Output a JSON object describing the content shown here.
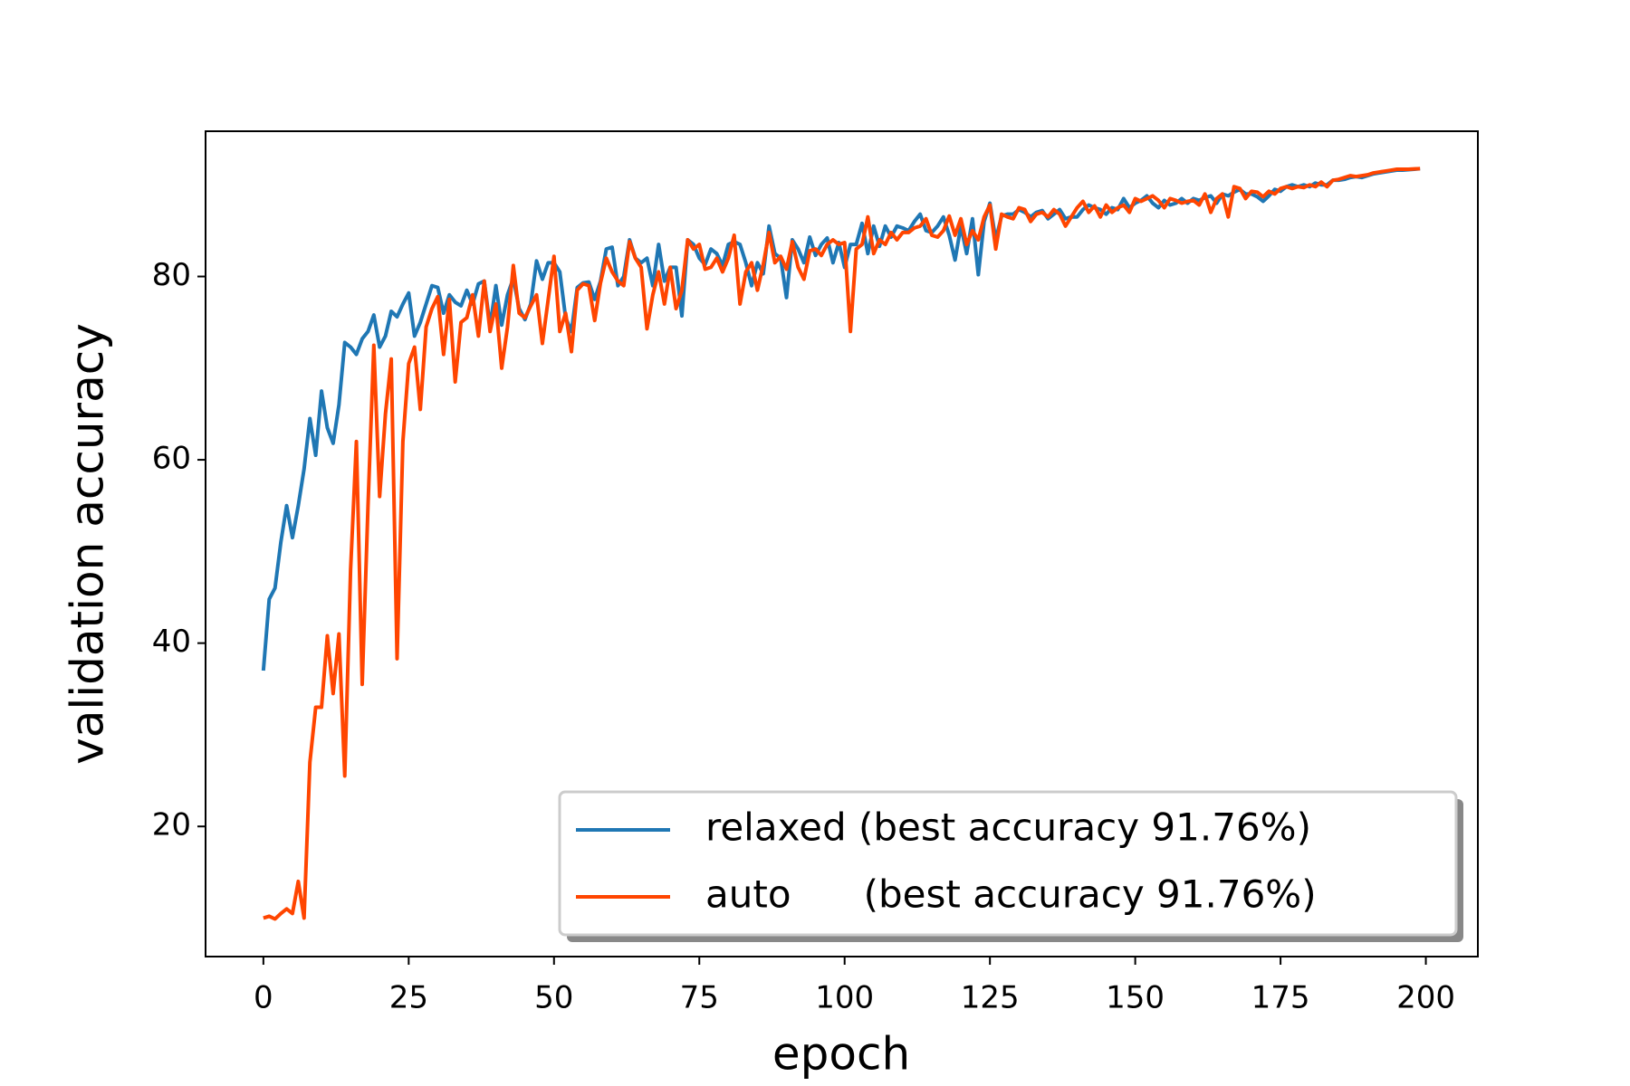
{
  "chart_data": {
    "type": "line",
    "xlabel": "epoch",
    "ylabel": "validation accuracy",
    "xlim": [
      -9.95,
      208.95
    ],
    "ylim": [
      5.8,
      95.85
    ],
    "xticks": [
      0,
      25,
      50,
      75,
      100,
      125,
      150,
      175,
      200
    ],
    "yticks": [
      20,
      40,
      60,
      80
    ],
    "legend": "lower right",
    "x": [
      0,
      1,
      2,
      3,
      4,
      5,
      6,
      7,
      8,
      9,
      10,
      11,
      12,
      13,
      14,
      15,
      16,
      17,
      18,
      19,
      20,
      21,
      22,
      23,
      24,
      25,
      26,
      27,
      28,
      29,
      30,
      31,
      32,
      33,
      34,
      35,
      36,
      37,
      38,
      39,
      40,
      41,
      42,
      43,
      44,
      45,
      46,
      47,
      48,
      49,
      50,
      51,
      52,
      53,
      54,
      55,
      56,
      57,
      58,
      59,
      60,
      61,
      62,
      63,
      64,
      65,
      66,
      67,
      68,
      69,
      70,
      71,
      72,
      73,
      74,
      75,
      76,
      77,
      78,
      79,
      80,
      81,
      82,
      83,
      84,
      85,
      86,
      87,
      88,
      89,
      90,
      91,
      92,
      93,
      94,
      95,
      96,
      97,
      98,
      99,
      100,
      101,
      102,
      103,
      104,
      105,
      106,
      107,
      108,
      109,
      110,
      111,
      112,
      113,
      114,
      115,
      116,
      117,
      118,
      119,
      120,
      121,
      122,
      123,
      124,
      125,
      126,
      127,
      128,
      129,
      130,
      131,
      132,
      133,
      134,
      135,
      136,
      137,
      138,
      139,
      140,
      141,
      142,
      143,
      144,
      145,
      146,
      147,
      148,
      149,
      150,
      151,
      152,
      153,
      154,
      155,
      156,
      157,
      158,
      159,
      160,
      161,
      162,
      163,
      164,
      165,
      166,
      167,
      168,
      169,
      170,
      171,
      172,
      173,
      174,
      175,
      176,
      177,
      178,
      179,
      180,
      181,
      182,
      183,
      184,
      185,
      186,
      187,
      188,
      189,
      190,
      191,
      192,
      193,
      194,
      195,
      196,
      197,
      198,
      199
    ],
    "series": [
      {
        "name": "relaxed (best accuracy 91.76%)",
        "color": "#1f77b4",
        "values": [
          37,
          44.8,
          46,
          51,
          55,
          51.5,
          55,
          59,
          64.5,
          60.5,
          67.5,
          63.5,
          61.8,
          66,
          72.8,
          72.3,
          71.5,
          73.2,
          74,
          75.8,
          72.3,
          73.5,
          76.2,
          75.6,
          77,
          78.2,
          73.5,
          75,
          77,
          79,
          78.8,
          76,
          78,
          77.2,
          76.8,
          78.5,
          77,
          79.2,
          79.5,
          74.6,
          79,
          74.7,
          78,
          79.8,
          76.5,
          75.3,
          77,
          81.7,
          79.7,
          81.5,
          81.5,
          80.5,
          75.5,
          74,
          78.8,
          79.3,
          79.4,
          77.5,
          79.5,
          83,
          83.2,
          79,
          80,
          84,
          82,
          81.5,
          82,
          79,
          83.5,
          79.5,
          81,
          81,
          75.7,
          84,
          83.5,
          82,
          81.3,
          83,
          82.5,
          81.2,
          83.5,
          83.8,
          83.5,
          81.5,
          79,
          81.5,
          80.3,
          85.5,
          82.5,
          82,
          77.7,
          84,
          83,
          81.5,
          84.3,
          82.3,
          83.5,
          84.2,
          81.5,
          83.7,
          81,
          83.5,
          83.5,
          85.8,
          82.5,
          85.5,
          83.3,
          85.5,
          84.3,
          85.5,
          85.3,
          85,
          86,
          86.8,
          85,
          84.8,
          85.5,
          86.5,
          84.5,
          81.8,
          85.5,
          82.5,
          86.3,
          80.2,
          86,
          88,
          84,
          86.6,
          86.8,
          86.8,
          87.3,
          87,
          86.5,
          87,
          87.2,
          86.3,
          86.8,
          87.3,
          86.3,
          86.5,
          86.5,
          87.3,
          87.8,
          87.5,
          87.3,
          86.8,
          87.5,
          87.3,
          88.5,
          87.5,
          88,
          88.3,
          88.8,
          88,
          87.5,
          88.3,
          87.8,
          88,
          88.5,
          88,
          88.5,
          88.3,
          88.6,
          88.8,
          88,
          89,
          88.8,
          89.2,
          89.5,
          89,
          89,
          88.7,
          88.2,
          88.8,
          89.5,
          89.3,
          89.8,
          90,
          89.8,
          90,
          89.8,
          90.2,
          90,
          90,
          90.5,
          90.5,
          90.6,
          90.8,
          90.9,
          90.8,
          91,
          91.2,
          91.3,
          91.4,
          91.5,
          91.6,
          91.6,
          91.65,
          91.7,
          91.76
        ]
      },
      {
        "name": "auto      (best accuracy 91.76%)",
        "color": "#ff4500",
        "values": [
          10,
          10.2,
          9.9,
          10.5,
          11,
          10.5,
          14,
          10,
          27,
          33,
          33,
          40.8,
          34.5,
          41,
          25.5,
          48,
          62,
          35.5,
          55,
          72.5,
          56,
          65,
          71,
          38.3,
          62,
          70.5,
          72.3,
          65.5,
          74.5,
          76.5,
          77.8,
          71.5,
          77.5,
          68.5,
          75,
          75.5,
          78,
          73.5,
          79.5,
          74,
          77,
          70,
          74.5,
          81.2,
          76,
          75.5,
          76.8,
          78,
          72.7,
          77.5,
          82.2,
          74,
          76,
          71.8,
          78.5,
          79.2,
          79,
          75.2,
          79.3,
          82,
          80.5,
          79.5,
          79,
          83.8,
          82,
          81,
          74.3,
          78,
          80.5,
          77,
          81,
          76.5,
          78.5,
          84,
          83,
          83.5,
          80.8,
          81,
          82,
          80.5,
          82,
          84.5,
          77,
          80.5,
          81.5,
          78.5,
          81.3,
          84.8,
          81.5,
          82.2,
          80.8,
          83.8,
          81,
          79.7,
          82.8,
          83,
          82.3,
          83.5,
          84,
          83.5,
          83.7,
          74,
          83,
          83.5,
          86.5,
          82.5,
          84,
          83.5,
          84.8,
          84,
          84.8,
          84.8,
          85.3,
          85.5,
          86.3,
          84.5,
          84.3,
          85,
          86.6,
          84.5,
          86.3,
          83.5,
          85,
          84,
          86.5,
          87.8,
          83,
          86.8,
          86.5,
          86.3,
          87.5,
          87.3,
          86,
          86.8,
          87,
          86.5,
          87.3,
          86.8,
          85.5,
          86.5,
          87.5,
          88.2,
          87,
          87.7,
          86.5,
          87.8,
          87,
          87.5,
          87.8,
          87,
          88.5,
          88.2,
          88.5,
          88.8,
          88.3,
          87.5,
          88.5,
          88.3,
          88,
          88.2,
          88.3,
          87.8,
          89,
          87,
          88.5,
          89,
          86.5,
          89.8,
          89.6,
          88.5,
          89.3,
          89.2,
          88.7,
          89.3,
          89,
          89.6,
          89.8,
          89.6,
          89.8,
          89.7,
          90,
          89.8,
          90.3,
          89.8,
          90.5,
          90.6,
          90.8,
          91,
          90.9,
          91,
          91.1,
          91.3,
          91.4,
          91.5,
          91.6,
          91.7,
          91.7,
          91.7,
          91.74,
          91.76
        ]
      }
    ]
  }
}
